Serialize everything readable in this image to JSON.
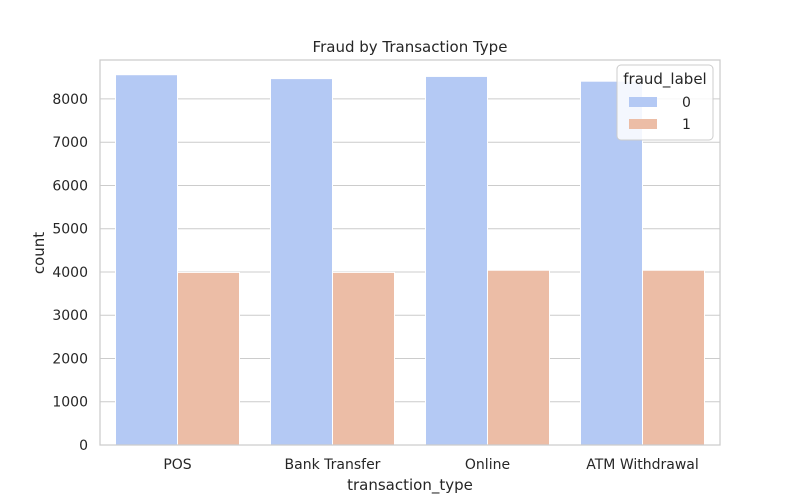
{
  "chart_data": {
    "type": "bar",
    "title": "Fraud by Transaction Type",
    "xlabel": "transaction_type",
    "ylabel": "count",
    "categories": [
      "POS",
      "Bank Transfer",
      "Online",
      "ATM Withdrawal"
    ],
    "series": [
      {
        "name": "0",
        "color": "#b4c9f4",
        "values": [
          8560,
          8470,
          8520,
          8410
        ]
      },
      {
        "name": "1",
        "color": "#ecbda6",
        "values": [
          3990,
          3990,
          4040,
          4040
        ]
      }
    ],
    "ylim": [
      0,
      8900
    ],
    "yticks": [
      0,
      1000,
      2000,
      3000,
      4000,
      5000,
      6000,
      7000,
      8000
    ],
    "grid": true,
    "legend": {
      "title": "fraud_label",
      "placement": "top-right"
    }
  }
}
